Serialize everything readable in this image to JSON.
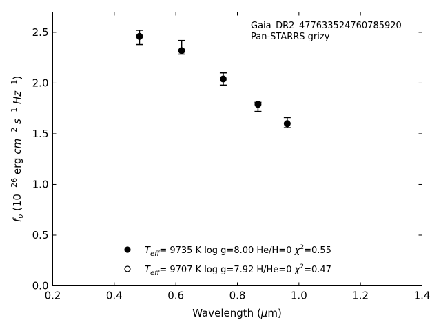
{
  "chart_data": {
    "type": "scatter",
    "xlabel_pre": "Wavelength (",
    "xlabel_mu": "μ",
    "xlabel_post": "m)",
    "ylabel_parts": [
      "f",
      "ν",
      " (10",
      "−26",
      " erg ",
      "cm",
      "−2",
      " ",
      "s",
      "−1",
      " ",
      "Hz",
      "−1",
      ")"
    ],
    "xlim": [
      0.2,
      1.4
    ],
    "ylim": [
      0.0,
      2.7
    ],
    "xticks": [
      0.2,
      0.4,
      0.6,
      0.8,
      1.0,
      1.2,
      1.4
    ],
    "xtick_labels": [
      "0.2",
      "0.4",
      "0.6",
      "0.8",
      "1.0",
      "1.2",
      "1.4"
    ],
    "yticks": [
      0.0,
      0.5,
      1.0,
      1.5,
      2.0,
      2.5
    ],
    "ytick_labels": [
      "0.0",
      "0.5",
      "1.0",
      "1.5",
      "2.0",
      "2.5"
    ],
    "grid": false,
    "annotation": [
      "Gaia_DR2_477633524760785920",
      "Pan-STARRS grizy"
    ],
    "annotation_position": "top-right",
    "series": [
      {
        "marker": "filled-circle",
        "color": "#000000",
        "x": [
          0.482,
          0.619,
          0.754,
          0.867,
          0.962
        ],
        "y": [
          2.46,
          2.32,
          2.04,
          1.79,
          1.6
        ],
        "yerr_low": [
          0.08,
          0.035,
          0.06,
          0.07,
          0.04
        ],
        "yerr_high": [
          0.06,
          0.1,
          0.06,
          0.02,
          0.06
        ]
      }
    ],
    "legend": [
      {
        "marker": "filled",
        "t": "T",
        "eff": "eff",
        "text": "=  9735 K  log g=8.00  He/H=0  ",
        "chi": "χ",
        "sup": "2",
        "val": "=0.55"
      },
      {
        "marker": "open",
        "t": "T",
        "eff": "eff",
        "text": "=  9707 K  log g=7.92  H/He=0  ",
        "chi": "χ",
        "sup": "2",
        "val": "=0.47"
      }
    ],
    "legend_position": "lower-center"
  }
}
